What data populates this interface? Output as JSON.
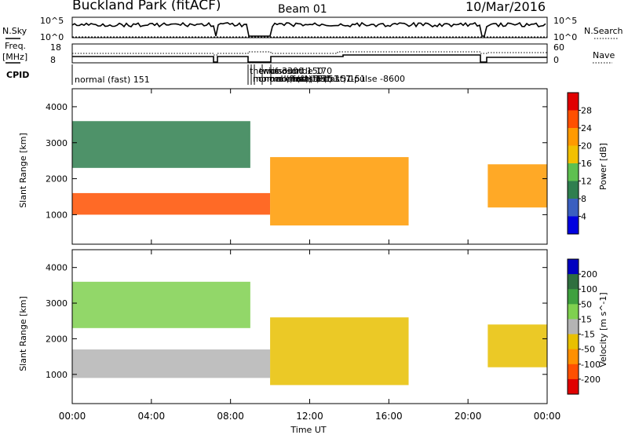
{
  "header": {
    "station": "Buckland Park (fitACF)",
    "beam": "Beam 01",
    "date": "10/Mar/2016"
  },
  "noise_panel": {
    "left_label": "N.Sky",
    "right_label": "N.Search",
    "left_ticks": [
      "10^5",
      "10^0"
    ],
    "right_ticks": [
      "10^5",
      "10^0"
    ]
  },
  "freq_panel": {
    "left_label_1": "Freq.",
    "left_label_2": "[MHz]",
    "right_label": "Nave",
    "left_ticks": [
      "18",
      "8"
    ],
    "right_ticks": [
      "60",
      "0"
    ]
  },
  "cpid_panel": {
    "label": "CPID",
    "segments": [
      "normal (fast) 151",
      "themis 3300",
      "normal (fast) 151",
      "normal (fast) 151",
      "normal (fast) 151",
      "twofsound 150",
      "ionosonde 170",
      "normal (fast) 151",
      "normal (fast) 151",
      "7-pulse -8600"
    ]
  },
  "chart_data": [
    {
      "type": "heatmap",
      "panel": "power",
      "ylabel": "Slant Range [km]",
      "ylim": [
        180,
        4500
      ],
      "yticks": [
        1000,
        2000,
        3000,
        4000
      ],
      "xlim": [
        0,
        24
      ],
      "colorbar": {
        "label": "Power [dB]",
        "ticks": [
          "28",
          "24",
          "20",
          "16",
          "12",
          "8",
          "4"
        ],
        "colors": [
          "#e00000",
          "#ff5000",
          "#ff9a00",
          "#f2c000",
          "#5ec050",
          "#2f7f4f",
          "#3a5fc0",
          "#0000e0"
        ]
      },
      "features": [
        {
          "name": "lower band",
          "t": [
            0,
            10
          ],
          "range_km": [
            1000,
            1600
          ],
          "power_db": 24
        },
        {
          "name": "upper patches",
          "t": [
            0,
            9
          ],
          "range_km": [
            2300,
            3600
          ],
          "power_db": 10
        },
        {
          "name": "afternoon arcs",
          "t": [
            10,
            17
          ],
          "range_km": [
            700,
            2600
          ],
          "power_db": 20
        },
        {
          "name": "evening band",
          "t": [
            21,
            24
          ],
          "range_km": [
            1200,
            2400
          ],
          "power_db": 22
        }
      ]
    },
    {
      "type": "heatmap",
      "panel": "velocity",
      "ylabel": "Slant Range [km]",
      "xlabel": "Time UT",
      "ylim": [
        180,
        4500
      ],
      "yticks": [
        1000,
        2000,
        3000,
        4000
      ],
      "xlim": [
        0,
        24
      ],
      "xticks": [
        "00:00",
        "04:00",
        "08:00",
        "12:00",
        "16:00",
        "20:00",
        "00:00"
      ],
      "colorbar": {
        "label": "Velocity [m s^-1]",
        "ticks": [
          "200",
          "100",
          "50",
          "15",
          "-15",
          "-50",
          "-100",
          "-200"
        ],
        "colors": [
          "#0000c0",
          "#2f6f3f",
          "#3fa03f",
          "#7fd04f",
          "#b4b4b4",
          "#e8c000",
          "#ff9000",
          "#ff5000",
          "#e00000"
        ]
      },
      "features": [
        {
          "name": "lower band",
          "t": [
            0,
            10
          ],
          "range_km": [
            900,
            1700
          ],
          "velocity": 0
        },
        {
          "name": "upper patches",
          "t": [
            0,
            9
          ],
          "range_km": [
            2300,
            3600
          ],
          "velocity": 30
        },
        {
          "name": "afternoon arcs",
          "t": [
            10,
            17
          ],
          "range_km": [
            700,
            2600
          ],
          "velocity": -30
        },
        {
          "name": "evening band",
          "t": [
            21,
            24
          ],
          "range_km": [
            1200,
            2400
          ],
          "velocity": -40
        }
      ]
    }
  ]
}
